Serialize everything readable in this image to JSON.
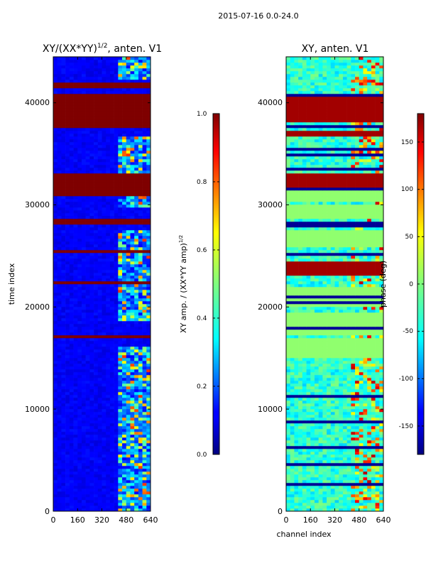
{
  "figure": {
    "suptitle": "2015-07-16 0.0-24.0"
  },
  "colors": {
    "jet_dark_blue": "#00007f",
    "jet_blue": "#0000ff",
    "jet_cyan": "#00ffff",
    "jet_green": "#7fff7f",
    "jet_yellow": "#ffff00",
    "jet_red": "#ff0000",
    "jet_dark_red": "#7f0000"
  },
  "chart_data": [
    {
      "type": "heatmap",
      "title_main": "XY/(XX*YY)",
      "title_sup": "1/2",
      "title_tail": ", anten. V1",
      "xlabel": "",
      "ylabel": "time index",
      "xlim": [
        0,
        640
      ],
      "ylim": [
        0,
        44500
      ],
      "xticks": [
        "0",
        "160",
        "320",
        "480",
        "640"
      ],
      "yticks": [
        "0",
        "10000",
        "20000",
        "30000",
        "40000"
      ],
      "colorbar": {
        "label_main": "XY amp. / (XX*YY amp)",
        "label_sup": "1/2",
        "range": [
          0.0,
          1.0
        ],
        "ticks": [
          "0.0",
          "0.2",
          "0.4",
          "0.6",
          "0.8",
          "1.0"
        ]
      },
      "background_value": 0.08,
      "saturated_time_bands": [
        [
          37500,
          41000
        ],
        [
          41400,
          41900
        ],
        [
          31000,
          33000
        ],
        [
          28000,
          28600
        ],
        [
          25300,
          25700
        ],
        [
          22300,
          22600
        ],
        [
          16900,
          17200
        ]
      ],
      "active_channel_range": [
        410,
        620
      ],
      "active_time_ranges": [
        [
          0,
          16000
        ],
        [
          18500,
          27500
        ],
        [
          29500,
          36500
        ],
        [
          42000,
          44500
        ]
      ]
    },
    {
      "type": "heatmap",
      "title_main": "XY, anten. V1",
      "title_sup": "",
      "title_tail": "",
      "xlabel": "channel index",
      "ylabel": "",
      "xlim": [
        0,
        640
      ],
      "ylim": [
        0,
        44500
      ],
      "xticks": [
        "0",
        "160",
        "320",
        "480",
        "640"
      ],
      "yticks": [
        "0",
        "10000",
        "20000",
        "30000",
        "40000"
      ],
      "colorbar": {
        "label_main": "phase (deg)",
        "label_sup": "",
        "range": [
          -180,
          180
        ],
        "ticks": [
          "-150",
          "-100",
          "-50",
          "0",
          "50",
          "100",
          "150"
        ]
      },
      "flat_phase_bands": [
        [
          15000,
          17000
        ],
        [
          17300,
          19500
        ],
        [
          20000,
          22000
        ],
        [
          26000,
          27500
        ],
        [
          28600,
          30000
        ],
        [
          30200,
          31500
        ]
      ],
      "saturated_time_bands": [
        [
          38000,
          40500
        ],
        [
          31800,
          33000
        ],
        [
          23000,
          24500
        ],
        [
          36800,
          37200
        ]
      ]
    }
  ]
}
